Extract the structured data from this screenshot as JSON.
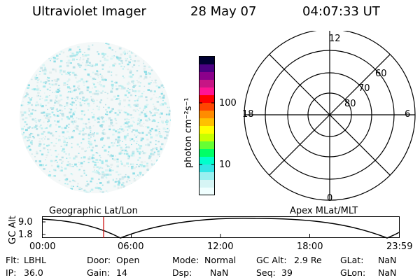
{
  "header": {
    "title": "Ultraviolet Imager",
    "date": "28 May 07",
    "time": "04:07:33 UT"
  },
  "colorbar": {
    "unit_label": "photon cm⁻²s⁻¹",
    "ticks": [
      "100",
      "10"
    ],
    "colors": [
      "#000033",
      "#4b0082",
      "#8b008b",
      "#c71585",
      "#ff1493",
      "#ff0000",
      "#ff4500",
      "#ff8c00",
      "#ffc000",
      "#ffff00",
      "#c8ff00",
      "#66ff33",
      "#00ff66",
      "#00ffcc",
      "#33e6e6",
      "#99f0f0",
      "#d6f5f5",
      "#f0ffff"
    ]
  },
  "polar_plot": {
    "mlt_labels": {
      "top": "12",
      "left": "18",
      "right": "6",
      "bottom": "0"
    },
    "lat_labels": [
      "60",
      "70",
      "80"
    ]
  },
  "timeline": {
    "left_title": "Geographic Lat/Lon",
    "right_title": "Apex MLat/MLT",
    "y_axis_label": "GC Alt",
    "y_ticks": [
      "9.0",
      "1.8"
    ],
    "x_ticks": [
      "00:00",
      "06:00",
      "12:00",
      "18:00",
      "23:59"
    ],
    "marker_color": "#cc0000"
  },
  "info": {
    "row1": [
      "Flt:",
      "LBHL",
      "Door:",
      "Open",
      "Mode:",
      "Normal",
      "GC Alt:",
      "2.9 Re",
      "GLat:",
      "NaN"
    ],
    "row2": [
      "IP:",
      "36.0",
      "Gain:",
      "14",
      "Dsp:",
      "NaN",
      "Seq:",
      "39",
      "GLon:",
      "NaN"
    ]
  }
}
